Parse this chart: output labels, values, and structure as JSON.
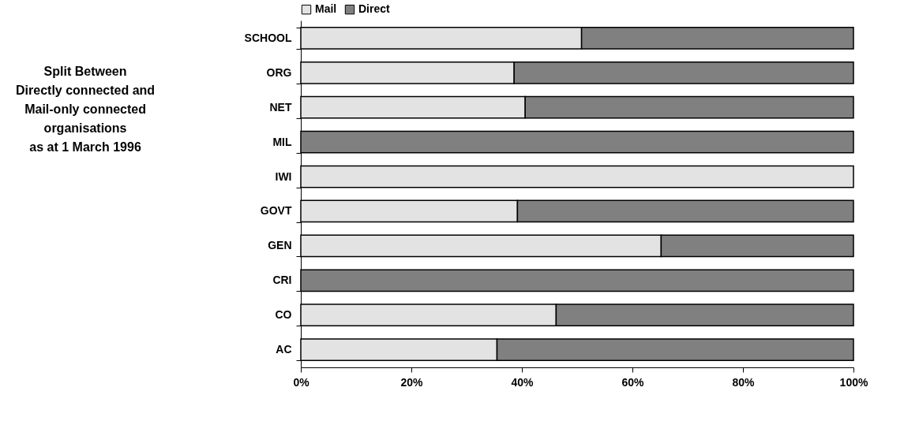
{
  "chart_data": {
    "type": "bar",
    "orientation": "horizontal",
    "stacked": true,
    "title": "Split Between\nDirectly connected and\nMail-only connected\norganisations\nas at 1 March 1996",
    "categories": [
      "SCHOOL",
      "ORG",
      "NET",
      "MIL",
      "IWI",
      "GOVT",
      "GEN",
      "CRI",
      "CO",
      "AC"
    ],
    "series": [
      {
        "name": "Mail",
        "color": "#e3e3e3",
        "values": [
          50.8,
          38.6,
          40.6,
          0,
          100,
          39.2,
          65.2,
          0,
          46.2,
          35.5
        ]
      },
      {
        "name": "Direct",
        "color": "#808080",
        "values": [
          49.2,
          61.4,
          59.4,
          100,
          0,
          60.8,
          34.8,
          100,
          53.8,
          64.5
        ]
      }
    ],
    "xlim": [
      0,
      100
    ],
    "xticks": [
      {
        "value": 0,
        "label": "0%"
      },
      {
        "value": 20,
        "label": "20%"
      },
      {
        "value": 40,
        "label": "40%"
      },
      {
        "value": 60,
        "label": "60%"
      },
      {
        "value": 80,
        "label": "80%"
      },
      {
        "value": 100,
        "label": "100%"
      }
    ],
    "grid": false,
    "legend": "top"
  }
}
